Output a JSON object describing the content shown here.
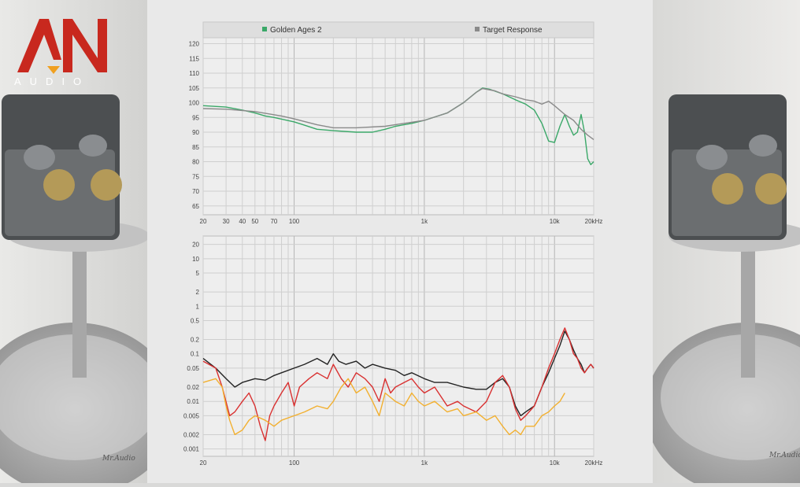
{
  "brand": {
    "logo_letters": "AN",
    "logo_sub": "AUDIO",
    "signature": "Mr.Audio"
  },
  "colors": {
    "golden_ages": "#3aa868",
    "target": "#8a8a8a",
    "dist_black": "#222222",
    "dist_red": "#d93030",
    "dist_orange": "#f2b030",
    "grid": "#cfcfcf",
    "legend_bg": "#dedede"
  },
  "chart_data": [
    {
      "type": "line",
      "legend": [
        "Golden Ages 2",
        "Target Response"
      ],
      "xscale": "log",
      "xlim": [
        20,
        20000
      ],
      "ylim": [
        62,
        122
      ],
      "yticks": [
        65,
        70,
        75,
        80,
        85,
        90,
        95,
        100,
        105,
        110,
        115,
        120
      ],
      "xtick_labels": [
        {
          "value": 20,
          "label": "20"
        },
        {
          "value": 30,
          "label": "30"
        },
        {
          "value": 40,
          "label": "40"
        },
        {
          "value": 50,
          "label": "50"
        },
        {
          "value": 70,
          "label": "70"
        },
        {
          "value": 100,
          "label": "100"
        },
        {
          "value": 1000,
          "label": "1k"
        },
        {
          "value": 10000,
          "label": "10k"
        },
        {
          "value": 20000,
          "label": "20kHz"
        }
      ],
      "series": [
        {
          "name": "Golden Ages 2",
          "color": "#3aa868",
          "points": [
            [
              20,
              99
            ],
            [
              30,
              98.5
            ],
            [
              40,
              97.5
            ],
            [
              50,
              96.5
            ],
            [
              60,
              95.5
            ],
            [
              70,
              95
            ],
            [
              100,
              93.5
            ],
            [
              150,
              91
            ],
            [
              200,
              90.5
            ],
            [
              300,
              90
            ],
            [
              400,
              90
            ],
            [
              500,
              91
            ],
            [
              600,
              92
            ],
            [
              800,
              93
            ],
            [
              1000,
              94
            ],
            [
              1500,
              96.5
            ],
            [
              2000,
              100
            ],
            [
              2500,
              103.5
            ],
            [
              2800,
              105
            ],
            [
              3200,
              104.5
            ],
            [
              4000,
              103
            ],
            [
              5000,
              101
            ],
            [
              6000,
              99.5
            ],
            [
              7000,
              97.5
            ],
            [
              8000,
              93
            ],
            [
              9000,
              87
            ],
            [
              10000,
              86.5
            ],
            [
              11000,
              92
            ],
            [
              12000,
              96
            ],
            [
              13000,
              92
            ],
            [
              14000,
              89
            ],
            [
              15000,
              90
            ],
            [
              16000,
              96
            ],
            [
              17000,
              90
            ],
            [
              18000,
              81
            ],
            [
              19000,
              79
            ],
            [
              20000,
              80
            ]
          ]
        },
        {
          "name": "Target Response",
          "color": "#8a8a8a",
          "points": [
            [
              20,
              98
            ],
            [
              30,
              97.8
            ],
            [
              50,
              97
            ],
            [
              80,
              95.5
            ],
            [
              100,
              94.5
            ],
            [
              150,
              92.5
            ],
            [
              200,
              91.5
            ],
            [
              300,
              91.5
            ],
            [
              500,
              92
            ],
            [
              700,
              93
            ],
            [
              1000,
              94
            ],
            [
              1500,
              96.5
            ],
            [
              2000,
              100
            ],
            [
              2500,
              103.5
            ],
            [
              2800,
              104.8
            ],
            [
              3500,
              104
            ],
            [
              4000,
              103
            ],
            [
              5000,
              102
            ],
            [
              6000,
              101
            ],
            [
              7000,
              100.5
            ],
            [
              8000,
              99.5
            ],
            [
              9000,
              100.5
            ],
            [
              10000,
              99
            ],
            [
              12000,
              96
            ],
            [
              14000,
              94
            ],
            [
              16000,
              91
            ],
            [
              18000,
              89
            ],
            [
              20000,
              87.5
            ]
          ]
        }
      ]
    },
    {
      "type": "line",
      "xscale": "log",
      "yscale": "log",
      "xlim": [
        20,
        20000
      ],
      "ylim": [
        0.0007,
        30
      ],
      "yticks": [
        {
          "value": 20,
          "label": "20"
        },
        {
          "value": 10,
          "label": "10"
        },
        {
          "value": 5,
          "label": "5"
        },
        {
          "value": 2,
          "label": "2"
        },
        {
          "value": 1,
          "label": "1"
        },
        {
          "value": 0.5,
          "label": "0.5"
        },
        {
          "value": 0.2,
          "label": "0.2"
        },
        {
          "value": 0.1,
          "label": "0.1"
        },
        {
          "value": 0.05,
          "label": "0.05"
        },
        {
          "value": 0.02,
          "label": "0.02"
        },
        {
          "value": 0.01,
          "label": "0.01"
        },
        {
          "value": 0.005,
          "label": "0.005"
        },
        {
          "value": 0.002,
          "label": "0.002"
        },
        {
          "value": 0.001,
          "label": "0.001"
        }
      ],
      "xtick_labels": [
        {
          "value": 20,
          "label": "20"
        },
        {
          "value": 100,
          "label": "100"
        },
        {
          "value": 1000,
          "label": "1k"
        },
        {
          "value": 10000,
          "label": "10k"
        },
        {
          "value": 20000,
          "label": "20kHz"
        }
      ],
      "series": [
        {
          "color": "#222222",
          "points": [
            [
              20,
              0.08
            ],
            [
              25,
              0.05
            ],
            [
              30,
              0.03
            ],
            [
              35,
              0.02
            ],
            [
              40,
              0.025
            ],
            [
              50,
              0.03
            ],
            [
              60,
              0.028
            ],
            [
              70,
              0.035
            ],
            [
              80,
              0.04
            ],
            [
              100,
              0.05
            ],
            [
              120,
              0.06
            ],
            [
              150,
              0.08
            ],
            [
              180,
              0.06
            ],
            [
              200,
              0.1
            ],
            [
              220,
              0.07
            ],
            [
              250,
              0.06
            ],
            [
              300,
              0.07
            ],
            [
              350,
              0.05
            ],
            [
              400,
              0.06
            ],
            [
              500,
              0.05
            ],
            [
              600,
              0.045
            ],
            [
              700,
              0.035
            ],
            [
              800,
              0.04
            ],
            [
              1000,
              0.03
            ],
            [
              1200,
              0.025
            ],
            [
              1500,
              0.025
            ],
            [
              2000,
              0.02
            ],
            [
              2500,
              0.018
            ],
            [
              3000,
              0.018
            ],
            [
              3500,
              0.025
            ],
            [
              4000,
              0.03
            ],
            [
              4500,
              0.02
            ],
            [
              5000,
              0.008
            ],
            [
              5500,
              0.005
            ],
            [
              6000,
              0.006
            ],
            [
              7000,
              0.008
            ],
            [
              8000,
              0.02
            ],
            [
              9000,
              0.04
            ],
            [
              10000,
              0.08
            ],
            [
              11000,
              0.15
            ],
            [
              12000,
              0.3
            ],
            [
              13000,
              0.2
            ],
            [
              14000,
              0.12
            ],
            [
              15000,
              0.08
            ],
            [
              16000,
              0.06
            ],
            [
              17000,
              0.04
            ],
            [
              18000,
              0.05
            ],
            [
              19000,
              0.06
            ],
            [
              20000,
              0.05
            ]
          ]
        },
        {
          "color": "#d93030",
          "points": [
            [
              20,
              0.07
            ],
            [
              25,
              0.05
            ],
            [
              28,
              0.02
            ],
            [
              32,
              0.005
            ],
            [
              35,
              0.006
            ],
            [
              40,
              0.01
            ],
            [
              45,
              0.015
            ],
            [
              50,
              0.008
            ],
            [
              55,
              0.003
            ],
            [
              60,
              0.0015
            ],
            [
              65,
              0.005
            ],
            [
              70,
              0.008
            ],
            [
              80,
              0.015
            ],
            [
              90,
              0.025
            ],
            [
              100,
              0.008
            ],
            [
              110,
              0.02
            ],
            [
              130,
              0.03
            ],
            [
              150,
              0.04
            ],
            [
              180,
              0.03
            ],
            [
              200,
              0.06
            ],
            [
              230,
              0.03
            ],
            [
              260,
              0.02
            ],
            [
              300,
              0.04
            ],
            [
              350,
              0.03
            ],
            [
              400,
              0.02
            ],
            [
              450,
              0.01
            ],
            [
              500,
              0.03
            ],
            [
              550,
              0.015
            ],
            [
              600,
              0.02
            ],
            [
              700,
              0.025
            ],
            [
              800,
              0.03
            ],
            [
              900,
              0.02
            ],
            [
              1000,
              0.015
            ],
            [
              1200,
              0.02
            ],
            [
              1500,
              0.008
            ],
            [
              1800,
              0.01
            ],
            [
              2000,
              0.008
            ],
            [
              2500,
              0.006
            ],
            [
              3000,
              0.01
            ],
            [
              3500,
              0.025
            ],
            [
              4000,
              0.035
            ],
            [
              4500,
              0.02
            ],
            [
              5000,
              0.007
            ],
            [
              5500,
              0.004
            ],
            [
              6000,
              0.005
            ],
            [
              7000,
              0.008
            ],
            [
              8000,
              0.02
            ],
            [
              9000,
              0.05
            ],
            [
              10000,
              0.1
            ],
            [
              11000,
              0.2
            ],
            [
              12000,
              0.35
            ],
            [
              13000,
              0.2
            ],
            [
              14000,
              0.1
            ],
            [
              15000,
              0.08
            ],
            [
              16000,
              0.05
            ],
            [
              17000,
              0.04
            ],
            [
              18000,
              0.05
            ],
            [
              19000,
              0.06
            ],
            [
              20000,
              0.05
            ]
          ]
        },
        {
          "color": "#f2b030",
          "points": [
            [
              20,
              0.025
            ],
            [
              25,
              0.03
            ],
            [
              28,
              0.02
            ],
            [
              30,
              0.008
            ],
            [
              32,
              0.004
            ],
            [
              35,
              0.002
            ],
            [
              40,
              0.0025
            ],
            [
              45,
              0.004
            ],
            [
              50,
              0.005
            ],
            [
              60,
              0.004
            ],
            [
              70,
              0.003
            ],
            [
              80,
              0.004
            ],
            [
              100,
              0.005
            ],
            [
              120,
              0.006
            ],
            [
              150,
              0.008
            ],
            [
              180,
              0.007
            ],
            [
              200,
              0.01
            ],
            [
              230,
              0.02
            ],
            [
              260,
              0.03
            ],
            [
              300,
              0.015
            ],
            [
              350,
              0.02
            ],
            [
              400,
              0.01
            ],
            [
              450,
              0.005
            ],
            [
              500,
              0.015
            ],
            [
              600,
              0.01
            ],
            [
              700,
              0.008
            ],
            [
              800,
              0.015
            ],
            [
              900,
              0.01
            ],
            [
              1000,
              0.008
            ],
            [
              1200,
              0.01
            ],
            [
              1500,
              0.006
            ],
            [
              1800,
              0.007
            ],
            [
              2000,
              0.005
            ],
            [
              2500,
              0.006
            ],
            [
              3000,
              0.004
            ],
            [
              3500,
              0.005
            ],
            [
              4000,
              0.003
            ],
            [
              4500,
              0.002
            ],
            [
              5000,
              0.0025
            ],
            [
              5500,
              0.002
            ],
            [
              6000,
              0.003
            ],
            [
              7000,
              0.003
            ],
            [
              8000,
              0.005
            ],
            [
              9000,
              0.006
            ],
            [
              10000,
              0.008
            ],
            [
              11000,
              0.01
            ],
            [
              12000,
              0.015
            ]
          ]
        }
      ]
    }
  ]
}
